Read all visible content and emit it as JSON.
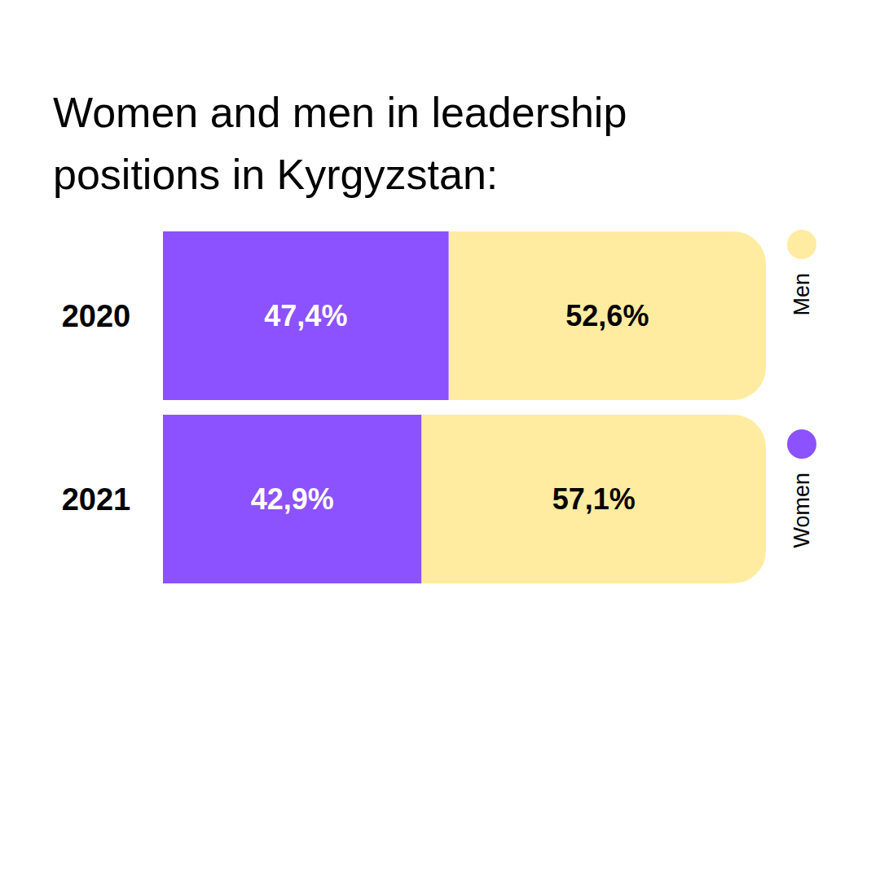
{
  "chart_data": {
    "type": "bar",
    "title": "Women and men in leadership positions in Kyrgyzstan:",
    "orientation": "horizontal",
    "stacked": true,
    "data_labels": true,
    "tick_labels": "y",
    "legend": "right",
    "categories": [
      "2020",
      "2021"
    ],
    "xlim": [
      0,
      100
    ],
    "series": [
      {
        "name": "Women",
        "color": "#8c52ff",
        "values": [
          47.4,
          42.9
        ],
        "value_labels": [
          "47,4%",
          "42,9%"
        ]
      },
      {
        "name": "Men",
        "color": "#ffeca0",
        "values": [
          52.6,
          57.1
        ],
        "value_labels": [
          "52,6%",
          "57,1%"
        ]
      }
    ]
  }
}
